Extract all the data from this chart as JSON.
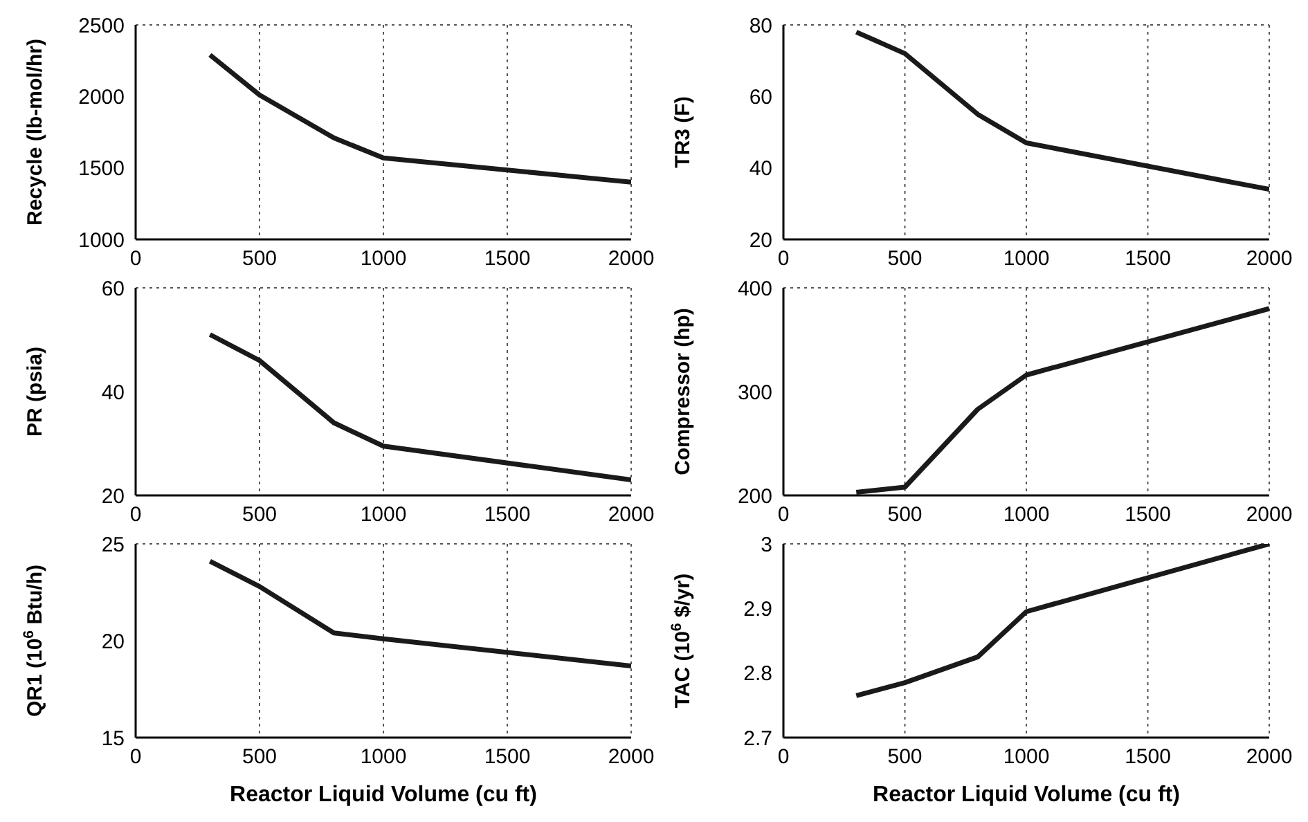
{
  "chart_data": [
    {
      "type": "line",
      "ylabel": "Recycle (lb-mol/hr)",
      "x": [
        300,
        500,
        800,
        1000,
        2000
      ],
      "series": [
        {
          "color": "#1a1a1a",
          "values": [
            2290,
            2010,
            1710,
            1570,
            1400
          ]
        }
      ],
      "xlim": [
        0,
        2000
      ],
      "xticks": [
        0,
        500,
        1000,
        1500,
        2000
      ],
      "ylim": [
        1000,
        2500
      ],
      "yticks": [
        1000,
        1500,
        2000,
        2500
      ],
      "grid": true,
      "line_style": "solid"
    },
    {
      "type": "line",
      "ylabel": "TR3 (F)",
      "x": [
        300,
        500,
        800,
        1000,
        2000
      ],
      "series": [
        {
          "color": "#1a1a1a",
          "values": [
            78,
            72,
            55,
            47,
            34
          ]
        }
      ],
      "xlim": [
        0,
        2000
      ],
      "xticks": [
        0,
        500,
        1000,
        1500,
        2000
      ],
      "ylim": [
        20,
        80
      ],
      "yticks": [
        20,
        40,
        60,
        80
      ],
      "grid": true,
      "line_style": "solid"
    },
    {
      "type": "line",
      "ylabel": "PR (psia)",
      "x": [
        300,
        500,
        800,
        1000,
        2000
      ],
      "series": [
        {
          "color": "#1a1a1a",
          "values": [
            51,
            46,
            34,
            29.5,
            23
          ]
        }
      ],
      "xlim": [
        0,
        2000
      ],
      "xticks": [
        0,
        500,
        1000,
        1500,
        2000
      ],
      "ylim": [
        20,
        60
      ],
      "yticks": [
        20,
        40,
        60
      ],
      "grid": true,
      "line_style": "solid"
    },
    {
      "type": "line",
      "ylabel": "Compressor (hp)",
      "x": [
        300,
        500,
        800,
        1000,
        2000
      ],
      "series": [
        {
          "color": "#1a1a1a",
          "values": [
            203,
            208,
            283,
            316,
            380
          ]
        }
      ],
      "xlim": [
        0,
        2000
      ],
      "xticks": [
        0,
        500,
        1000,
        1500,
        2000
      ],
      "ylim": [
        200,
        400
      ],
      "yticks": [
        200,
        300,
        400
      ],
      "grid": true,
      "line_style": "solid"
    },
    {
      "type": "line",
      "ylabel": "QR1 (10$^{6}$ Btu/h)",
      "xlabel": "Reactor Liquid Volume (cu ft)",
      "x": [
        300,
        500,
        800,
        1000,
        2000
      ],
      "series": [
        {
          "color": "#1a1a1a",
          "values": [
            24.1,
            22.8,
            20.4,
            20.1,
            18.7
          ]
        }
      ],
      "xlim": [
        0,
        2000
      ],
      "xticks": [
        0,
        500,
        1000,
        1500,
        2000
      ],
      "ylim": [
        15,
        25
      ],
      "yticks": [
        15,
        20,
        25
      ],
      "grid": true,
      "line_style": "solid"
    },
    {
      "type": "line",
      "ylabel": "TAC (10$^{6}$ $/yr)",
      "xlabel": "Reactor Liquid Volume (cu ft)",
      "x": [
        300,
        500,
        800,
        1000,
        2000
      ],
      "series": [
        {
          "color": "#1a1a1a",
          "values": [
            2.765,
            2.785,
            2.825,
            2.895,
            3.0
          ]
        }
      ],
      "xlim": [
        0,
        2000
      ],
      "xticks": [
        0,
        500,
        1000,
        1500,
        2000
      ],
      "ylim": [
        2.7,
        3
      ],
      "yticks": [
        2.7,
        2.8,
        2.9,
        3
      ],
      "grid": true,
      "line_style": "solid"
    }
  ]
}
